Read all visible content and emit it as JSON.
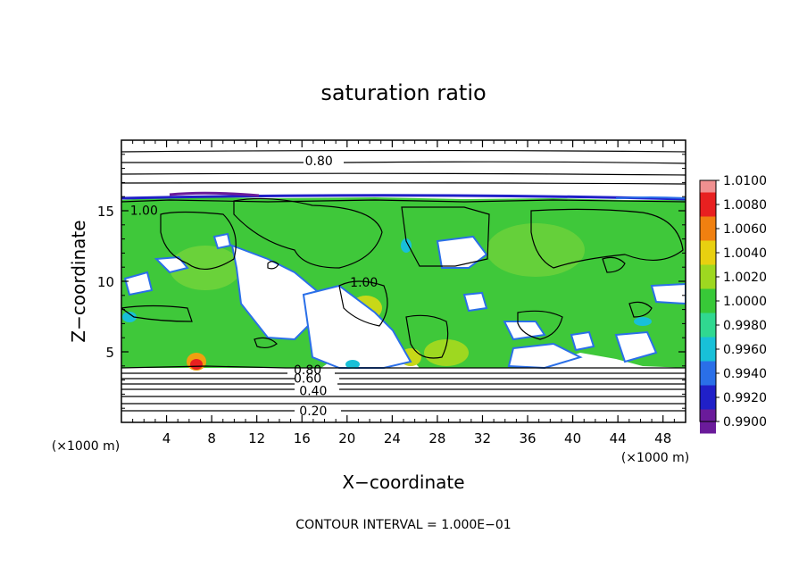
{
  "chart_data": {
    "type": "heatmap",
    "title": "saturation ratio",
    "xlabel": "X−coordinate",
    "ylabel": "Z−coordinate",
    "x_unit_label": "(×1000 m)",
    "y_unit_label": "(×1000 m)",
    "xlim": [
      0,
      50
    ],
    "ylim": [
      0,
      20
    ],
    "xticks": [
      4,
      8,
      12,
      16,
      20,
      24,
      28,
      32,
      36,
      40,
      44,
      48
    ],
    "yticks": [
      5,
      10,
      15
    ],
    "footer": "CONTOUR INTERVAL = 1.000E−01",
    "colorbar": {
      "ticks": [
        "0.9900",
        "0.9920",
        "0.9940",
        "0.9960",
        "0.9980",
        "1.0000",
        "1.0020",
        "1.0040",
        "1.0060",
        "1.0080",
        "1.0100"
      ],
      "colors": [
        "#6a1b9a",
        "#2020c8",
        "#2a6fe8",
        "#18c0d8",
        "#30d890",
        "#38c838",
        "#9ed820",
        "#e8d010",
        "#f08010",
        "#e82020",
        "#f09090"
      ]
    },
    "contour_labels": [
      {
        "text": "0.80",
        "x": 17.5,
        "z": 18.6
      },
      {
        "text": "1.00",
        "x": 2.0,
        "z": 15.1
      },
      {
        "text": "1.00",
        "x": 21.5,
        "z": 10.0
      },
      {
        "text": "0.80",
        "x": 16.5,
        "z": 3.8
      },
      {
        "text": "0.60",
        "x": 16.5,
        "z": 3.2
      },
      {
        "text": "0.40",
        "x": 17.0,
        "z": 2.3
      },
      {
        "text": "0.20",
        "x": 17.0,
        "z": 0.9
      }
    ]
  }
}
